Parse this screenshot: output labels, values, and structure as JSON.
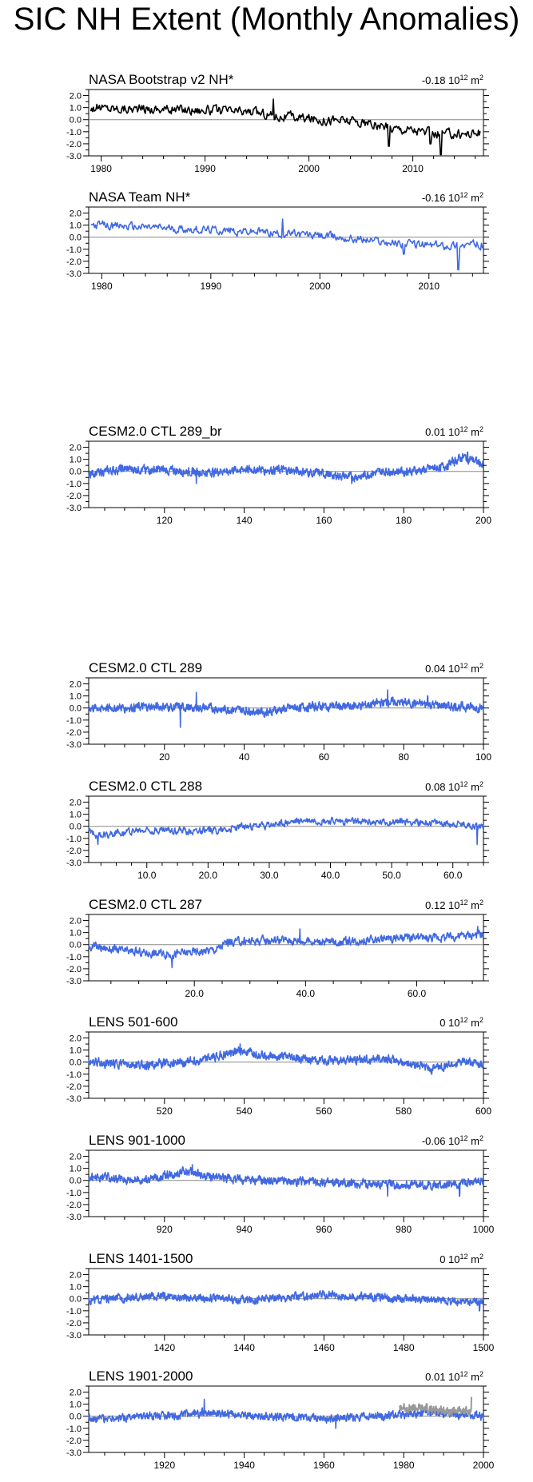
{
  "title": "SIC NH Extent (Monthly Anomalies)",
  "unit_label": "10",
  "unit_exp": "12",
  "unit_tail": " m",
  "unit_sup2": "2",
  "colors": {
    "obs_black": "#000000",
    "model_blue": "#4169e1",
    "obs_gray": "#999999",
    "zero_line": "#888888"
  },
  "chart_data": [
    {
      "type": "line",
      "title": "NASA Bootstrap v2 NH*",
      "mean": "-0.18",
      "color": "#000000",
      "xlim": [
        1978.8,
        2016.8
      ],
      "ylim": [
        -3.0,
        2.5
      ],
      "yticks": [
        "2.0",
        "1.0",
        "0.0",
        "-1.0",
        "-2.0",
        "-3.0"
      ],
      "xticks": [
        1980,
        1990,
        2000,
        2010
      ],
      "xtick_labels": [
        "1980",
        "1990",
        "2000",
        "2010"
      ],
      "series": [
        {
          "x_start": 1979.0,
          "x_end": 2016.5,
          "step": 0.0833,
          "anchors": [
            [
              1979,
              1.0
            ],
            [
              1985,
              0.9
            ],
            [
              1990,
              0.8
            ],
            [
              1995,
              0.6
            ],
            [
              1997,
              0.3
            ],
            [
              2000,
              0.1
            ],
            [
              2004,
              -0.1
            ],
            [
              2007,
              -0.6
            ],
            [
              2010,
              -0.8
            ],
            [
              2012,
              -1.2
            ],
            [
              2016.5,
              -1.1
            ]
          ],
          "noise": 0.35,
          "spikes": [
            [
              1996.6,
              1.7
            ],
            [
              2007.7,
              -2.2
            ],
            [
              2012.7,
              -2.9
            ],
            [
              2011.7,
              -2.0
            ]
          ]
        }
      ]
    },
    {
      "type": "line",
      "title": "NASA Team NH*",
      "mean": "-0.16",
      "color": "#4169e1",
      "xlim": [
        1978.8,
        2015.0
      ],
      "ylim": [
        -3.0,
        2.5
      ],
      "yticks": [
        "2.0",
        "1.0",
        "0.0",
        "-1.0",
        "-2.0",
        "-3.0"
      ],
      "xticks": [
        1980,
        1990,
        2000,
        2010
      ],
      "xtick_labels": [
        "1980",
        "1990",
        "2000",
        "2010"
      ],
      "series": [
        {
          "x_start": 1979.0,
          "x_end": 2015.0,
          "step": 0.0833,
          "anchors": [
            [
              1979,
              1.0
            ],
            [
              1985,
              0.8
            ],
            [
              1990,
              0.6
            ],
            [
              1995,
              0.4
            ],
            [
              2000,
              0.1
            ],
            [
              2005,
              -0.3
            ],
            [
              2008,
              -0.6
            ],
            [
              2011,
              -0.7
            ],
            [
              2015,
              -0.6
            ]
          ],
          "noise": 0.3,
          "spikes": [
            [
              1996.6,
              1.5
            ],
            [
              2007.7,
              -1.4
            ],
            [
              2012.7,
              -2.7
            ]
          ]
        }
      ]
    },
    {
      "type": "line",
      "title": "CESM2.0 CTL 289_br",
      "mean": "0.01",
      "color": "#4169e1",
      "xlim": [
        101,
        200
      ],
      "ylim": [
        -3.0,
        2.5
      ],
      "yticks": [
        "2.0",
        "1.0",
        "0.0",
        "-1.0",
        "-2.0",
        "-3.0"
      ],
      "xticks": [
        120,
        140,
        160,
        180,
        200
      ],
      "xtick_labels": [
        "120",
        "140",
        "160",
        "180",
        "200"
      ],
      "series": [
        {
          "x_start": 101,
          "x_end": 200,
          "step": 0.0833,
          "anchors": [
            [
              101,
              -0.2
            ],
            [
              110,
              0.2
            ],
            [
              120,
              0.1
            ],
            [
              130,
              -0.1
            ],
            [
              140,
              0.2
            ],
            [
              150,
              0.1
            ],
            [
              160,
              -0.2
            ],
            [
              167,
              -0.5
            ],
            [
              175,
              0.0
            ],
            [
              185,
              0.1
            ],
            [
              190,
              0.4
            ],
            [
              195,
              1.2
            ],
            [
              200,
              0.6
            ]
          ],
          "noise": 0.3,
          "spikes": [
            [
              128,
              -1.0
            ],
            [
              167,
              -1.0
            ],
            [
              196,
              1.6
            ]
          ]
        }
      ]
    },
    {
      "type": "line",
      "title": "CESM2.0 CTL 289",
      "mean": "0.04",
      "color": "#4169e1",
      "xlim": [
        1,
        100
      ],
      "ylim": [
        -3.0,
        2.5
      ],
      "yticks": [
        "2.0",
        "1.0",
        "0.0",
        "-1.0",
        "-2.0",
        "-3.0"
      ],
      "xticks": [
        20,
        40,
        60,
        80,
        100
      ],
      "xtick_labels": [
        "20",
        "40",
        "60",
        "80",
        "100"
      ],
      "series": [
        {
          "x_start": 1,
          "x_end": 100,
          "step": 0.0833,
          "anchors": [
            [
              1,
              0.0
            ],
            [
              20,
              0.1
            ],
            [
              30,
              0.0
            ],
            [
              45,
              -0.3
            ],
            [
              55,
              0.1
            ],
            [
              70,
              0.2
            ],
            [
              76,
              0.5
            ],
            [
              85,
              0.3
            ],
            [
              100,
              0.0
            ]
          ],
          "noise": 0.3,
          "spikes": [
            [
              28,
              1.3
            ],
            [
              24,
              -1.6
            ],
            [
              76,
              1.5
            ],
            [
              86,
              1.0
            ]
          ]
        }
      ]
    },
    {
      "type": "line",
      "title": "CESM2.0 CTL 288",
      "mean": "0.08",
      "color": "#4169e1",
      "xlim": [
        0.5,
        65.0
      ],
      "ylim": [
        -3.0,
        2.5
      ],
      "yticks": [
        "2.0",
        "1.0",
        "0.0",
        "-1.0",
        "-2.0",
        "-3.0"
      ],
      "xticks": [
        10,
        20,
        30,
        40,
        50,
        60
      ],
      "xtick_labels": [
        "10.0",
        "20.0",
        "30.0",
        "40.0",
        "50.0",
        "60.0"
      ],
      "series": [
        {
          "x_start": 0.5,
          "x_end": 65.0,
          "step": 0.0833,
          "anchors": [
            [
              0.5,
              -0.3
            ],
            [
              2,
              -0.8
            ],
            [
              5,
              -0.5
            ],
            [
              10,
              -0.3
            ],
            [
              20,
              -0.4
            ],
            [
              25,
              -0.1
            ],
            [
              30,
              0.1
            ],
            [
              36,
              0.5
            ],
            [
              42,
              0.4
            ],
            [
              48,
              0.3
            ],
            [
              52,
              0.4
            ],
            [
              56,
              0.3
            ],
            [
              60,
              0.2
            ],
            [
              65,
              0.0
            ]
          ],
          "noise": 0.25,
          "spikes": [
            [
              2,
              -1.5
            ],
            [
              64,
              -1.5
            ]
          ]
        }
      ]
    },
    {
      "type": "line",
      "title": "CESM2.0 CTL 287",
      "mean": "0.12",
      "color": "#4169e1",
      "xlim": [
        1,
        72.0
      ],
      "ylim": [
        -3.0,
        2.5
      ],
      "yticks": [
        "2.0",
        "1.0",
        "0.0",
        "-1.0",
        "-2.0",
        "-3.0"
      ],
      "xticks": [
        20,
        40,
        60
      ],
      "xtick_labels": [
        "20.0",
        "40.0",
        "60.0"
      ],
      "series": [
        {
          "x_start": 1,
          "x_end": 72.0,
          "step": 0.0833,
          "anchors": [
            [
              1,
              -0.1
            ],
            [
              8,
              -0.6
            ],
            [
              16,
              -0.8
            ],
            [
              24,
              -0.4
            ],
            [
              26,
              0.2
            ],
            [
              35,
              0.4
            ],
            [
              45,
              0.2
            ],
            [
              55,
              0.5
            ],
            [
              65,
              0.6
            ],
            [
              72,
              0.9
            ]
          ],
          "noise": 0.3,
          "spikes": [
            [
              16,
              -1.9
            ],
            [
              39,
              1.3
            ],
            [
              71,
              1.5
            ]
          ]
        }
      ]
    },
    {
      "type": "line",
      "title": "LENS 501-600",
      "mean": "0",
      "color": "#4169e1",
      "xlim": [
        501,
        600
      ],
      "ylim": [
        -3.0,
        2.5
      ],
      "yticks": [
        "2.0",
        "1.0",
        "0.0",
        "-1.0",
        "-2.0",
        "-3.0"
      ],
      "xticks": [
        520,
        540,
        560,
        580,
        600
      ],
      "xtick_labels": [
        "520",
        "540",
        "560",
        "580",
        "600"
      ],
      "series": [
        {
          "x_start": 501,
          "x_end": 600,
          "step": 0.0833,
          "anchors": [
            [
              501,
              0.0
            ],
            [
              515,
              -0.3
            ],
            [
              530,
              0.2
            ],
            [
              539,
              0.9
            ],
            [
              550,
              0.4
            ],
            [
              560,
              0.1
            ],
            [
              575,
              0.3
            ],
            [
              587,
              -0.5
            ],
            [
              595,
              0.0
            ],
            [
              600,
              -0.2
            ]
          ],
          "noise": 0.3,
          "spikes": [
            [
              539,
              1.5
            ],
            [
              587,
              -1.0
            ]
          ]
        }
      ]
    },
    {
      "type": "line",
      "title": "LENS 901-1000",
      "mean": "-0.06",
      "color": "#4169e1",
      "xlim": [
        901,
        1000
      ],
      "ylim": [
        -3.0,
        2.5
      ],
      "yticks": [
        "2.0",
        "1.0",
        "0.0",
        "-1.0",
        "-2.0",
        "-3.0"
      ],
      "xticks": [
        920,
        940,
        960,
        980,
        1000
      ],
      "xtick_labels": [
        "920",
        "940",
        "960",
        "980",
        "1000"
      ],
      "series": [
        {
          "x_start": 901,
          "x_end": 1000,
          "step": 0.0833,
          "anchors": [
            [
              901,
              0.3
            ],
            [
              915,
              0.0
            ],
            [
              925,
              0.8
            ],
            [
              930,
              0.3
            ],
            [
              945,
              0.0
            ],
            [
              960,
              -0.2
            ],
            [
              975,
              -0.3
            ],
            [
              990,
              -0.4
            ],
            [
              1000,
              0.0
            ]
          ],
          "noise": 0.3,
          "spikes": [
            [
              927,
              1.3
            ],
            [
              976,
              -1.3
            ],
            [
              994,
              -1.3
            ]
          ]
        }
      ]
    },
    {
      "type": "line",
      "title": "LENS 1401-1500",
      "mean": "0",
      "color": "#4169e1",
      "xlim": [
        1401,
        1500
      ],
      "ylim": [
        -3.0,
        2.5
      ],
      "yticks": [
        "2.0",
        "1.0",
        "0.0",
        "-1.0",
        "-2.0",
        "-3.0"
      ],
      "xticks": [
        1420,
        1440,
        1460,
        1480,
        1500
      ],
      "xtick_labels": [
        "1420",
        "1440",
        "1460",
        "1480",
        "1500"
      ],
      "series": [
        {
          "x_start": 1401,
          "x_end": 1500,
          "step": 0.0833,
          "anchors": [
            [
              1401,
              -0.1
            ],
            [
              1420,
              0.2
            ],
            [
              1440,
              -0.1
            ],
            [
              1460,
              0.3
            ],
            [
              1480,
              0.0
            ],
            [
              1500,
              -0.3
            ]
          ],
          "noise": 0.28,
          "spikes": [
            [
              1499,
              -1.0
            ]
          ]
        }
      ]
    },
    {
      "type": "line",
      "title": "LENS 1901-2000",
      "mean": "0.01",
      "color": "#4169e1",
      "xlim": [
        1901,
        2000
      ],
      "ylim": [
        -3.0,
        2.5
      ],
      "yticks": [
        "2.0",
        "1.0",
        "0.0",
        "-1.0",
        "-2.0",
        "-3.0"
      ],
      "xticks": [
        1920,
        1940,
        1960,
        1980,
        2000
      ],
      "xtick_labels": [
        "1920",
        "1940",
        "1960",
        "1980",
        "2000"
      ],
      "series": [
        {
          "x_start": 1901,
          "x_end": 2000,
          "step": 0.0833,
          "anchors": [
            [
              1901,
              -0.2
            ],
            [
              1920,
              0.0
            ],
            [
              1930,
              0.3
            ],
            [
              1945,
              0.0
            ],
            [
              1960,
              -0.2
            ],
            [
              1975,
              0.0
            ],
            [
              1985,
              0.3
            ],
            [
              1995,
              0.1
            ],
            [
              2000,
              0.0
            ]
          ],
          "noise": 0.28,
          "spikes": [
            [
              1930,
              1.4
            ],
            [
              1963,
              -1.0
            ]
          ]
        },
        {
          "x_start": 1979,
          "x_end": 1997,
          "step": 0.0833,
          "color": "#999999",
          "anchors": [
            [
              1979,
              0.7
            ],
            [
              1985,
              0.6
            ],
            [
              1990,
              0.5
            ],
            [
              1997,
              0.4
            ]
          ],
          "noise": 0.3,
          "spikes": [
            [
              1997,
              1.6
            ]
          ]
        }
      ]
    }
  ]
}
